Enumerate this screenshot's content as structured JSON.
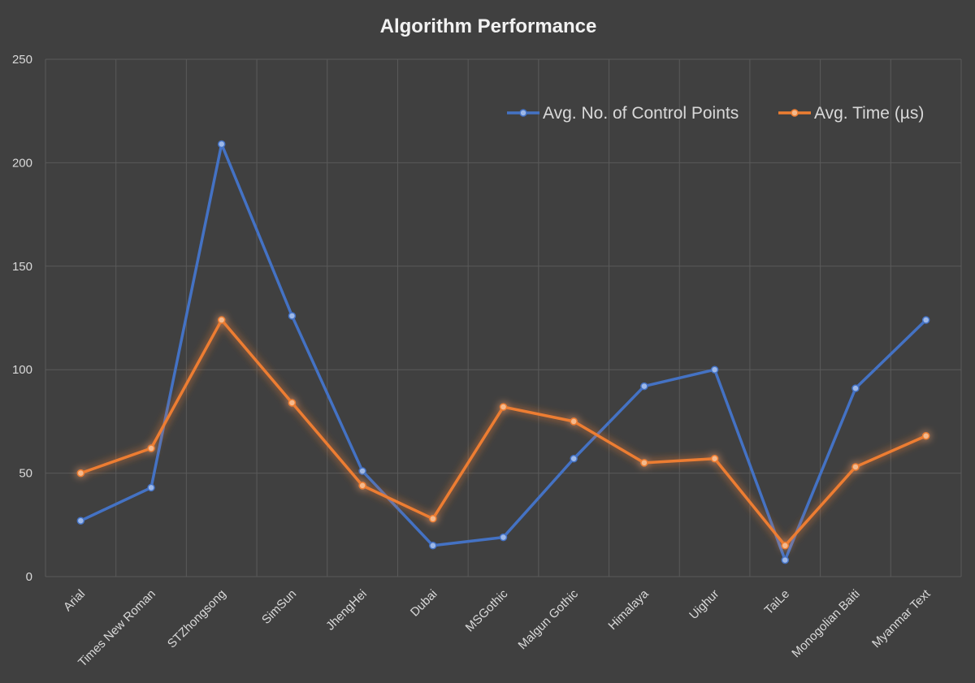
{
  "chart_data": {
    "type": "line",
    "title": "Algorithm Performance",
    "xlabel": "",
    "ylabel": "",
    "ylim": [
      0,
      250
    ],
    "yticks": [
      0,
      50,
      100,
      150,
      200,
      250
    ],
    "grid": true,
    "legend_position": "top-right",
    "categories": [
      "Arial",
      "Times New Roman",
      "STZhongsong",
      "SimSun",
      "JhengHei",
      "Dubai",
      "MSGothic",
      "Malgun Gothic",
      "Himalaya",
      "Uighur",
      "TaiLe",
      "Monogolian Baiti",
      "Myanmar Text"
    ],
    "series": [
      {
        "name": "Avg. No. of Control Points",
        "color": "#4472c4",
        "values": [
          27,
          43,
          209,
          126,
          51,
          15,
          19,
          57,
          92,
          100,
          8,
          91,
          124
        ]
      },
      {
        "name": "Avg. Time (µs)",
        "color": "#ed7d31",
        "values": [
          50,
          62,
          124,
          84,
          44,
          28,
          82,
          75,
          55,
          57,
          15,
          53,
          68
        ]
      }
    ]
  }
}
